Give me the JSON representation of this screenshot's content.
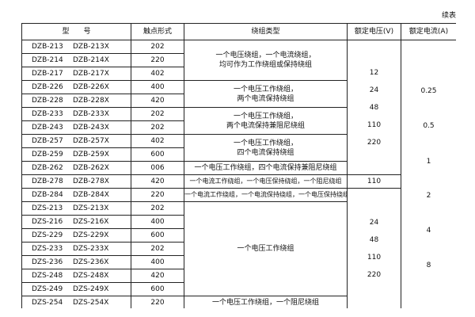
{
  "continued_label": "续表",
  "headers": {
    "model": "型　　号",
    "contact": "触点形式",
    "winding": "绕组类型",
    "voltage": "额定电压(V)",
    "current": "额定电流(A)"
  },
  "rows": [
    {
      "a": "DZB-213",
      "b": "DZB-213X",
      "c": "202"
    },
    {
      "a": "DZB-214",
      "b": "DZB-214X",
      "c": "220"
    },
    {
      "a": "DZB-217",
      "b": "DZB-217X",
      "c": "402"
    },
    {
      "a": "DZB-226",
      "b": "DZB-226X",
      "c": "400"
    },
    {
      "a": "DZB-228",
      "b": "DZB-228X",
      "c": "420"
    },
    {
      "a": "DZB-233",
      "b": "DZB-233X",
      "c": "202"
    },
    {
      "a": "DZB-243",
      "b": "DZB-243X",
      "c": "202"
    },
    {
      "a": "DZB-257",
      "b": "DZB-257X",
      "c": "402"
    },
    {
      "a": "DZB-259",
      "b": "DZB-259X",
      "c": "600"
    },
    {
      "a": "DZB-262",
      "b": "DZB-262X",
      "c": "006"
    },
    {
      "a": "DZB-278",
      "b": "DZB-278X",
      "c": "420"
    },
    {
      "a": "DZB-284",
      "b": "DZB-284X",
      "c": "220"
    },
    {
      "a": "DZS-213",
      "b": "DZS-213X",
      "c": "202"
    },
    {
      "a": "DZS-216",
      "b": "DZS-216X",
      "c": "400"
    },
    {
      "a": "DZS-229",
      "b": "DZS-229X",
      "c": "600"
    },
    {
      "a": "DZS-233",
      "b": "DZS-233X",
      "c": "202"
    },
    {
      "a": "DZS-236",
      "b": "DZS-236X",
      "c": "400"
    },
    {
      "a": "DZS-248",
      "b": "DZS-248X",
      "c": "420"
    },
    {
      "a": "DZS-249",
      "b": "DZS-249X",
      "c": "600"
    },
    {
      "a": "DZS-254",
      "b": "DZS-254X",
      "c": "220"
    }
  ],
  "windings": [
    [
      "一个电压绕组，一个电流绕组，",
      "均可作为工作绕组或保持绕组"
    ],
    [
      "一个电压工作绕组，",
      "两个电流保持绕组"
    ],
    [
      "一个电压工作绕组，",
      "两个电流保持兼阻尼绕组"
    ],
    [
      "一个电压工作绕组，",
      "四个电流保持绕组"
    ],
    [
      "一个电压工作绕组，四个电流保持兼阻尼绕组"
    ],
    [
      "一个电流工作绕组，一个电压保持绕组，一个阻尼绕组"
    ],
    [
      "一个电流工作绕组，一个电流保持绕组，一个电压保持绕组"
    ],
    [
      "一个电压工作绕组"
    ],
    [
      "一个电压工作绕组，一个阻尼绕组"
    ]
  ],
  "voltages": {
    "group1": [
      "12",
      "24",
      "48",
      "110",
      "220"
    ],
    "group2": [
      "110"
    ],
    "group3": [
      "24",
      "48",
      "110",
      "220"
    ]
  },
  "currents": [
    "0.25",
    "0.5",
    "1",
    "2",
    "4",
    "8"
  ]
}
